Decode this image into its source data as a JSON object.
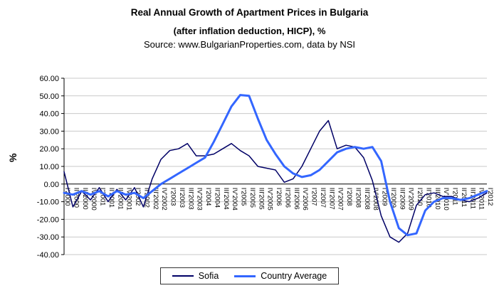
{
  "chart_data": {
    "type": "line",
    "title": "Real Annual Growth of Apartment Prices in Bulgaria",
    "subtitle": "(after inflation deduction, HICP), %",
    "source": "Source: www.BulgarianProperties.com, data by NSI",
    "ylabel": "%",
    "ylim": [
      -40,
      60
    ],
    "ytick_step": 10,
    "ytick_decimals": 2,
    "grid": true,
    "zero_axis": true,
    "legend_position": "bottom",
    "categories": [
      "I'2000",
      "II'2000",
      "III'2000",
      "IV'2000",
      "I'2001",
      "II'2001",
      "III'2001",
      "IV'2001",
      "I'2002",
      "II'2002",
      "III'2002",
      "IV'2002",
      "I'2003",
      "II'2003",
      "III'2003",
      "IV'2003",
      "I'2004",
      "II'2004",
      "III'2004",
      "IV'2004",
      "I'2005",
      "II'2005",
      "III'2005",
      "IV'2005",
      "I'2006",
      "II'2006",
      "III'2006",
      "IV'2006",
      "I'2007",
      "II'2007",
      "III'2007",
      "IV'2007",
      "I'2008",
      "II'2008",
      "III'2008",
      "IV'2008",
      "I'2009",
      "II'2009",
      "III'2009",
      "IV'2009",
      "I'2010",
      "II'2010",
      "III'2010",
      "IV'2010",
      "I'2011",
      "II'2011",
      "III'2011",
      "IV'2011",
      "I'2012"
    ],
    "series": [
      {
        "name": "Sofia",
        "color": "#000066",
        "line_width": 1.5,
        "values": [
          7,
          -13,
          -4,
          -9,
          -2,
          -10,
          -3,
          -9,
          -2,
          -13,
          3,
          14,
          19,
          20,
          23,
          16,
          16,
          17,
          20,
          23,
          19,
          16,
          10,
          9,
          8,
          1,
          3,
          10,
          20,
          30,
          36,
          20,
          22,
          21,
          15,
          2,
          -18,
          -30,
          -33,
          -28,
          -12,
          -6,
          -5,
          -7,
          -7,
          -9,
          -10,
          -8,
          -5
        ]
      },
      {
        "name": "Country Average",
        "color": "#3366FF",
        "line_width": 3,
        "values": [
          -5,
          -6,
          -4,
          -6,
          -4,
          -7,
          -4,
          -6,
          -5,
          -8,
          -4,
          0,
          3,
          6,
          9,
          12,
          15,
          24,
          34,
          44,
          50.5,
          50,
          37,
          25,
          17,
          10,
          6,
          4,
          5,
          8,
          13,
          18,
          20,
          21,
          20,
          21,
          13,
          -10,
          -25,
          -29,
          -28,
          -15,
          -10,
          -8,
          -8,
          -9,
          -8,
          -6,
          -4
        ]
      }
    ]
  }
}
